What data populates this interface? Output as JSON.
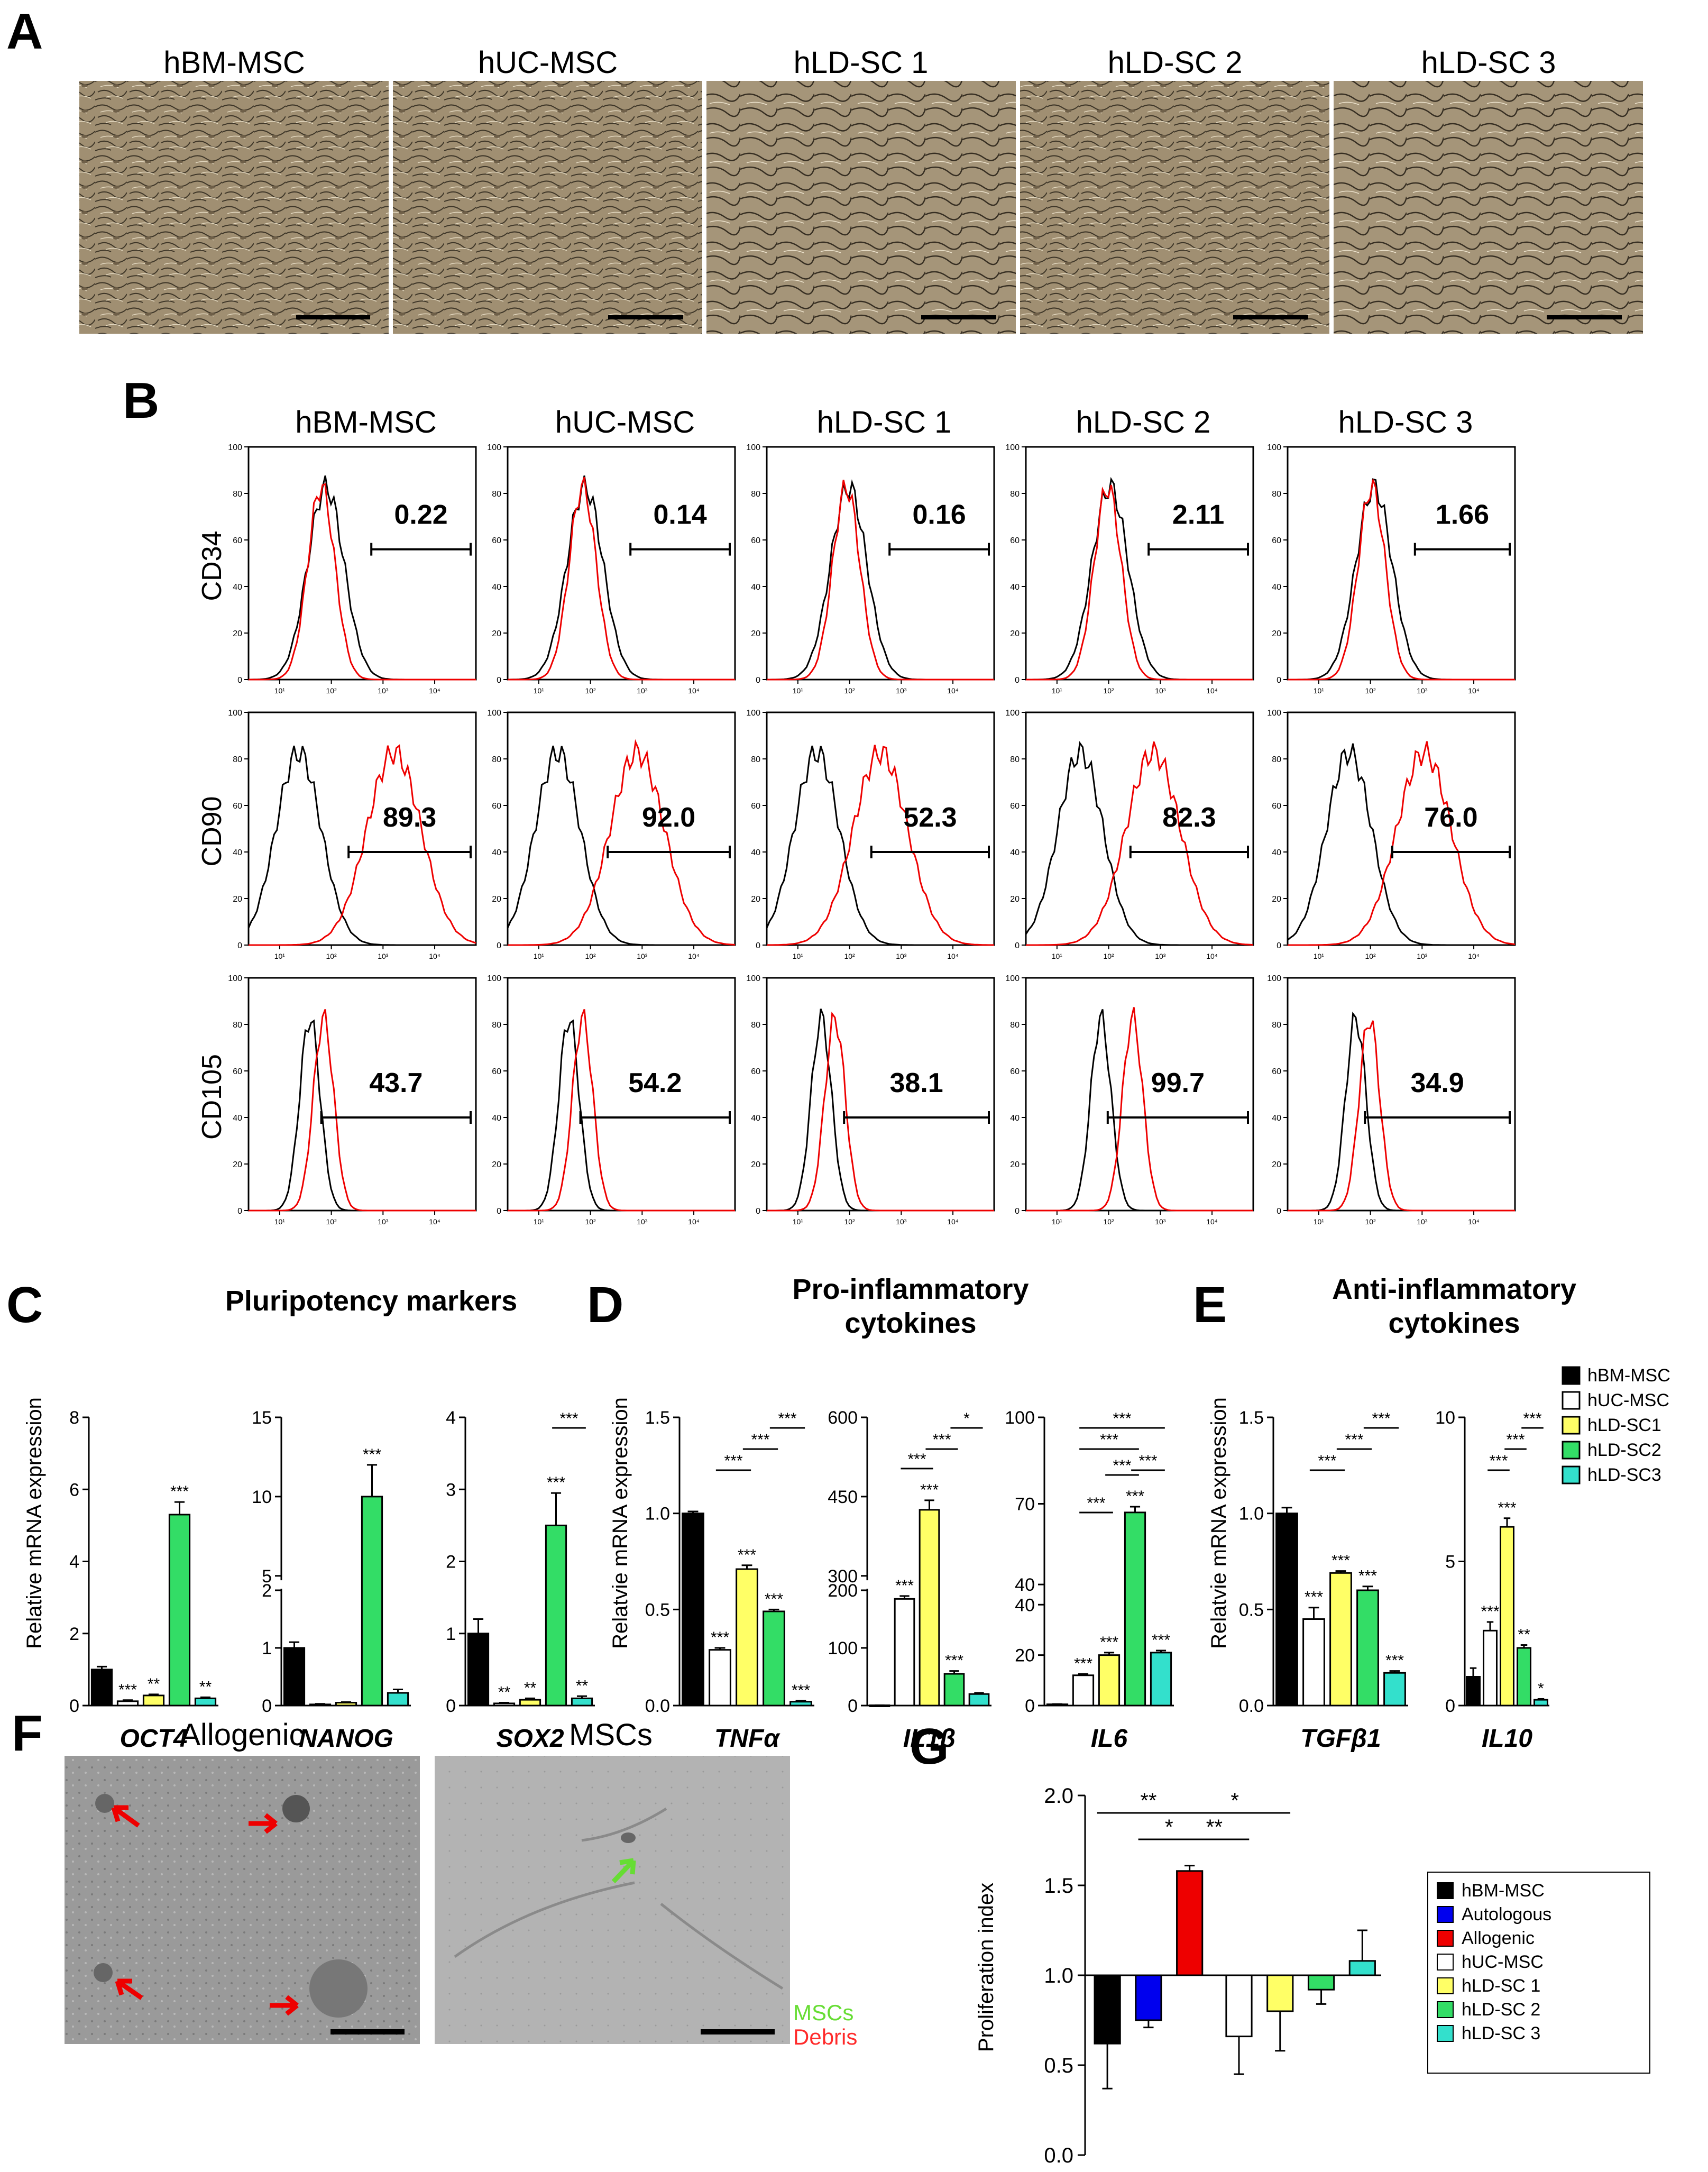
{
  "panel_labels": {
    "A": "A",
    "B": "B",
    "C": "C",
    "D": "D",
    "E": "E",
    "F": "F",
    "G": "G"
  },
  "samples": [
    "hBM-MSC",
    "hUC-MSC",
    "hLD-SC 1",
    "hLD-SC 2",
    "hLD-SC 3"
  ],
  "flow": {
    "markers": [
      "CD34",
      "CD90",
      "CD105"
    ],
    "values": [
      [
        "0.22",
        "0.14",
        "0.16",
        "2.11",
        "1.66"
      ],
      [
        "89.3",
        "92.0",
        "52.3",
        "82.3",
        "76.0"
      ],
      [
        "43.7",
        "54.2",
        "38.1",
        "99.7",
        "34.9"
      ]
    ],
    "y_ticks": [
      "100",
      "80",
      "60",
      "40",
      "20",
      "0"
    ],
    "x_ticks": [
      "10¹",
      "10²",
      "10³",
      "10⁴"
    ]
  },
  "panel_c_title": "Pluripotency markers",
  "panel_d_title_1": "Pro-inflammatory",
  "panel_d_title_2": "cytokines",
  "panel_e_title_1": "Anti-inflammatory",
  "panel_e_title_2": "cytokines",
  "ylabel_c": "Relative mRNA expression",
  "ylabel_de": "Relatvie mRNA expression",
  "ylabel_g": "Proliferation index",
  "legend_cde": [
    "hBM-MSC",
    "hUC-MSC",
    "hLD-SC1",
    "hLD-SC2",
    "hLD-SC3"
  ],
  "colors": {
    "black": "#000000",
    "white": "#ffffff",
    "yellow": "#ffff66",
    "green": "#33dd66",
    "teal": "#33e0cc",
    "blue": "#0000ee",
    "red": "#ee0000",
    "red_label": "#ff2a2a",
    "green_label": "#66dd33"
  },
  "chart_data": [
    {
      "id": "OCT4",
      "type": "bar",
      "title": "OCT4",
      "categories": [
        "hBM-MSC",
        "hUC-MSC",
        "hLD-SC1",
        "hLD-SC2",
        "hLD-SC3"
      ],
      "values": [
        1.0,
        0.12,
        0.28,
        5.3,
        0.2
      ],
      "errors": [
        0.08,
        0.03,
        0.03,
        0.35,
        0.03
      ],
      "sig": [
        "",
        "***",
        "**",
        "***",
        "**"
      ],
      "ylim": [
        0,
        8
      ],
      "yticks": [
        "0",
        "2",
        "4",
        "6",
        "8"
      ],
      "brackets": []
    },
    {
      "id": "NANOG",
      "type": "bar",
      "title": "NANOG",
      "categories": [
        "hBM-MSC",
        "hUC-MSC",
        "hLD-SC1",
        "hLD-SC2",
        "hLD-SC3"
      ],
      "values": [
        1.0,
        0.02,
        0.05,
        10.0,
        0.22
      ],
      "errors": [
        0.1,
        0.01,
        0.01,
        2.0,
        0.06
      ],
      "sig": [
        "",
        "",
        "",
        "***",
        ""
      ],
      "ylim": [
        0,
        15
      ],
      "axis_break": [
        2,
        5
      ],
      "yticks": [
        "0",
        "1",
        "2",
        "5",
        "10",
        "15"
      ],
      "brackets": []
    },
    {
      "id": "SOX2",
      "type": "bar",
      "title": "SOX2",
      "categories": [
        "hBM-MSC",
        "hUC-MSC",
        "hLD-SC1",
        "hLD-SC2",
        "hLD-SC3"
      ],
      "values": [
        1.0,
        0.03,
        0.08,
        2.5,
        0.1
      ],
      "errors": [
        0.2,
        0.01,
        0.02,
        0.45,
        0.03
      ],
      "sig": [
        "",
        "**",
        "**",
        "***",
        "**"
      ],
      "ylim": [
        0,
        4
      ],
      "yticks": [
        "0",
        "1",
        "2",
        "3",
        "4"
      ],
      "brackets": [
        {
          "from": 3,
          "to": 4,
          "label": "***"
        }
      ]
    },
    {
      "id": "TNFa",
      "type": "bar",
      "title": "TNFα",
      "categories": [
        "hBM-MSC",
        "hUC-MSC",
        "hLD-SC1",
        "hLD-SC2",
        "hLD-SC3"
      ],
      "values": [
        1.0,
        0.29,
        0.71,
        0.49,
        0.02
      ],
      "errors": [
        0.01,
        0.01,
        0.02,
        0.01,
        0.005
      ],
      "sig": [
        "",
        "***",
        "***",
        "***",
        "***"
      ],
      "ylim": [
        0,
        1.5
      ],
      "yticks": [
        "0.0",
        "0.5",
        "1.0",
        "1.5"
      ],
      "brackets": [
        {
          "from": 1,
          "to": 2,
          "label": "***"
        },
        {
          "from": 2,
          "to": 3,
          "label": "***"
        },
        {
          "from": 3,
          "to": 4,
          "label": "***"
        }
      ]
    },
    {
      "id": "IL1b",
      "type": "bar",
      "title": "IL1β",
      "categories": [
        "hBM-MSC",
        "hUC-MSC",
        "hLD-SC1",
        "hLD-SC2",
        "hLD-SC3"
      ],
      "values": [
        0.5,
        185,
        425,
        55,
        20
      ],
      "errors": [
        0.1,
        5,
        18,
        5,
        2
      ],
      "sig": [
        "",
        "***",
        "***",
        "***",
        ""
      ],
      "ylim": [
        0,
        600
      ],
      "axis_break": [
        200,
        300
      ],
      "yticks": [
        "0",
        "100",
        "200",
        "300",
        "450",
        "600"
      ],
      "brackets": [
        {
          "from": 1,
          "to": 2,
          "label": "***"
        },
        {
          "from": 2,
          "to": 3,
          "label": "***"
        },
        {
          "from": 3,
          "to": 4,
          "label": "*"
        }
      ]
    },
    {
      "id": "IL6",
      "type": "bar",
      "title": "IL6",
      "categories": [
        "hBM-MSC",
        "hUC-MSC",
        "hLD-SC1",
        "hLD-SC2",
        "hLD-SC3"
      ],
      "values": [
        0.5,
        12,
        20,
        67,
        21
      ],
      "errors": [
        0.1,
        0.5,
        1,
        2,
        0.8
      ],
      "sig": [
        "",
        "***",
        "***",
        "***",
        "***"
      ],
      "ylim": [
        0,
        100
      ],
      "axis_break": [
        40,
        40
      ],
      "yticks": [
        "0",
        "20",
        "40",
        "40",
        "70",
        "100"
      ],
      "brackets": [
        {
          "from": 1,
          "to": 2,
          "label": "***"
        },
        {
          "from": 2,
          "to": 3,
          "label": "***"
        },
        {
          "from": 3,
          "to": 4,
          "label": "***"
        },
        {
          "from": 1,
          "to": 3,
          "label": "***"
        },
        {
          "from": 1,
          "to": 4,
          "label": "***"
        }
      ]
    },
    {
      "id": "TGFb1",
      "type": "bar",
      "title": "TGFβ1",
      "categories": [
        "hBM-MSC",
        "hUC-MSC",
        "hLD-SC1",
        "hLD-SC2",
        "hLD-SC3"
      ],
      "values": [
        1.0,
        0.45,
        0.69,
        0.6,
        0.17
      ],
      "errors": [
        0.03,
        0.06,
        0.01,
        0.02,
        0.01
      ],
      "sig": [
        "",
        "***",
        "***",
        "***",
        "***"
      ],
      "ylim": [
        0,
        1.5
      ],
      "yticks": [
        "0.0",
        "0.5",
        "1.0",
        "1.5"
      ],
      "brackets": [
        {
          "from": 1,
          "to": 2,
          "label": "***"
        },
        {
          "from": 2,
          "to": 3,
          "label": "***"
        },
        {
          "from": 3,
          "to": 4,
          "label": "***"
        }
      ]
    },
    {
      "id": "IL10",
      "type": "bar",
      "title": "IL10",
      "categories": [
        "hBM-MSC",
        "hUC-MSC",
        "hLD-SC1",
        "hLD-SC2",
        "hLD-SC3"
      ],
      "values": [
        1.0,
        2.6,
        6.2,
        2.0,
        0.2
      ],
      "errors": [
        0.3,
        0.3,
        0.3,
        0.1,
        0.03
      ],
      "sig": [
        "",
        "***",
        "***",
        "**",
        "*"
      ],
      "ylim": [
        0,
        10
      ],
      "yticks": [
        "0",
        "5",
        "10"
      ],
      "brackets": [
        {
          "from": 1,
          "to": 2,
          "label": "***"
        },
        {
          "from": 2,
          "to": 3,
          "label": "***"
        },
        {
          "from": 3,
          "to": 4,
          "label": "***"
        }
      ]
    },
    {
      "id": "G",
      "type": "bar",
      "title": "Proliferation index",
      "categories": [
        "hBM-MSC",
        "Autologous",
        "Allogenic",
        "hUC-MSC",
        "hLD-SC 1",
        "hLD-SC 2",
        "hLD-SC 3"
      ],
      "values": [
        0.62,
        0.75,
        1.58,
        0.66,
        0.8,
        0.92,
        1.08
      ],
      "errors": [
        0.25,
        0.04,
        0.03,
        0.21,
        0.22,
        0.08,
        0.17
      ],
      "baseline": 1.0,
      "ylim": [
        0,
        2.0
      ],
      "yticks": [
        "0.0",
        "0.5",
        "1.0",
        "1.5",
        "2.0"
      ],
      "brackets": [
        {
          "from": 0,
          "to": 2,
          "label": "**"
        },
        {
          "from": 1,
          "to": 2,
          "label": "*"
        },
        {
          "from": 2,
          "to": 3,
          "label": "**"
        },
        {
          "from": 2,
          "to": 4,
          "label": "*"
        }
      ]
    }
  ],
  "panel_f": {
    "titles": [
      "Allogenic",
      "MSCs"
    ],
    "legend": [
      "MSCs",
      "Debris"
    ]
  }
}
